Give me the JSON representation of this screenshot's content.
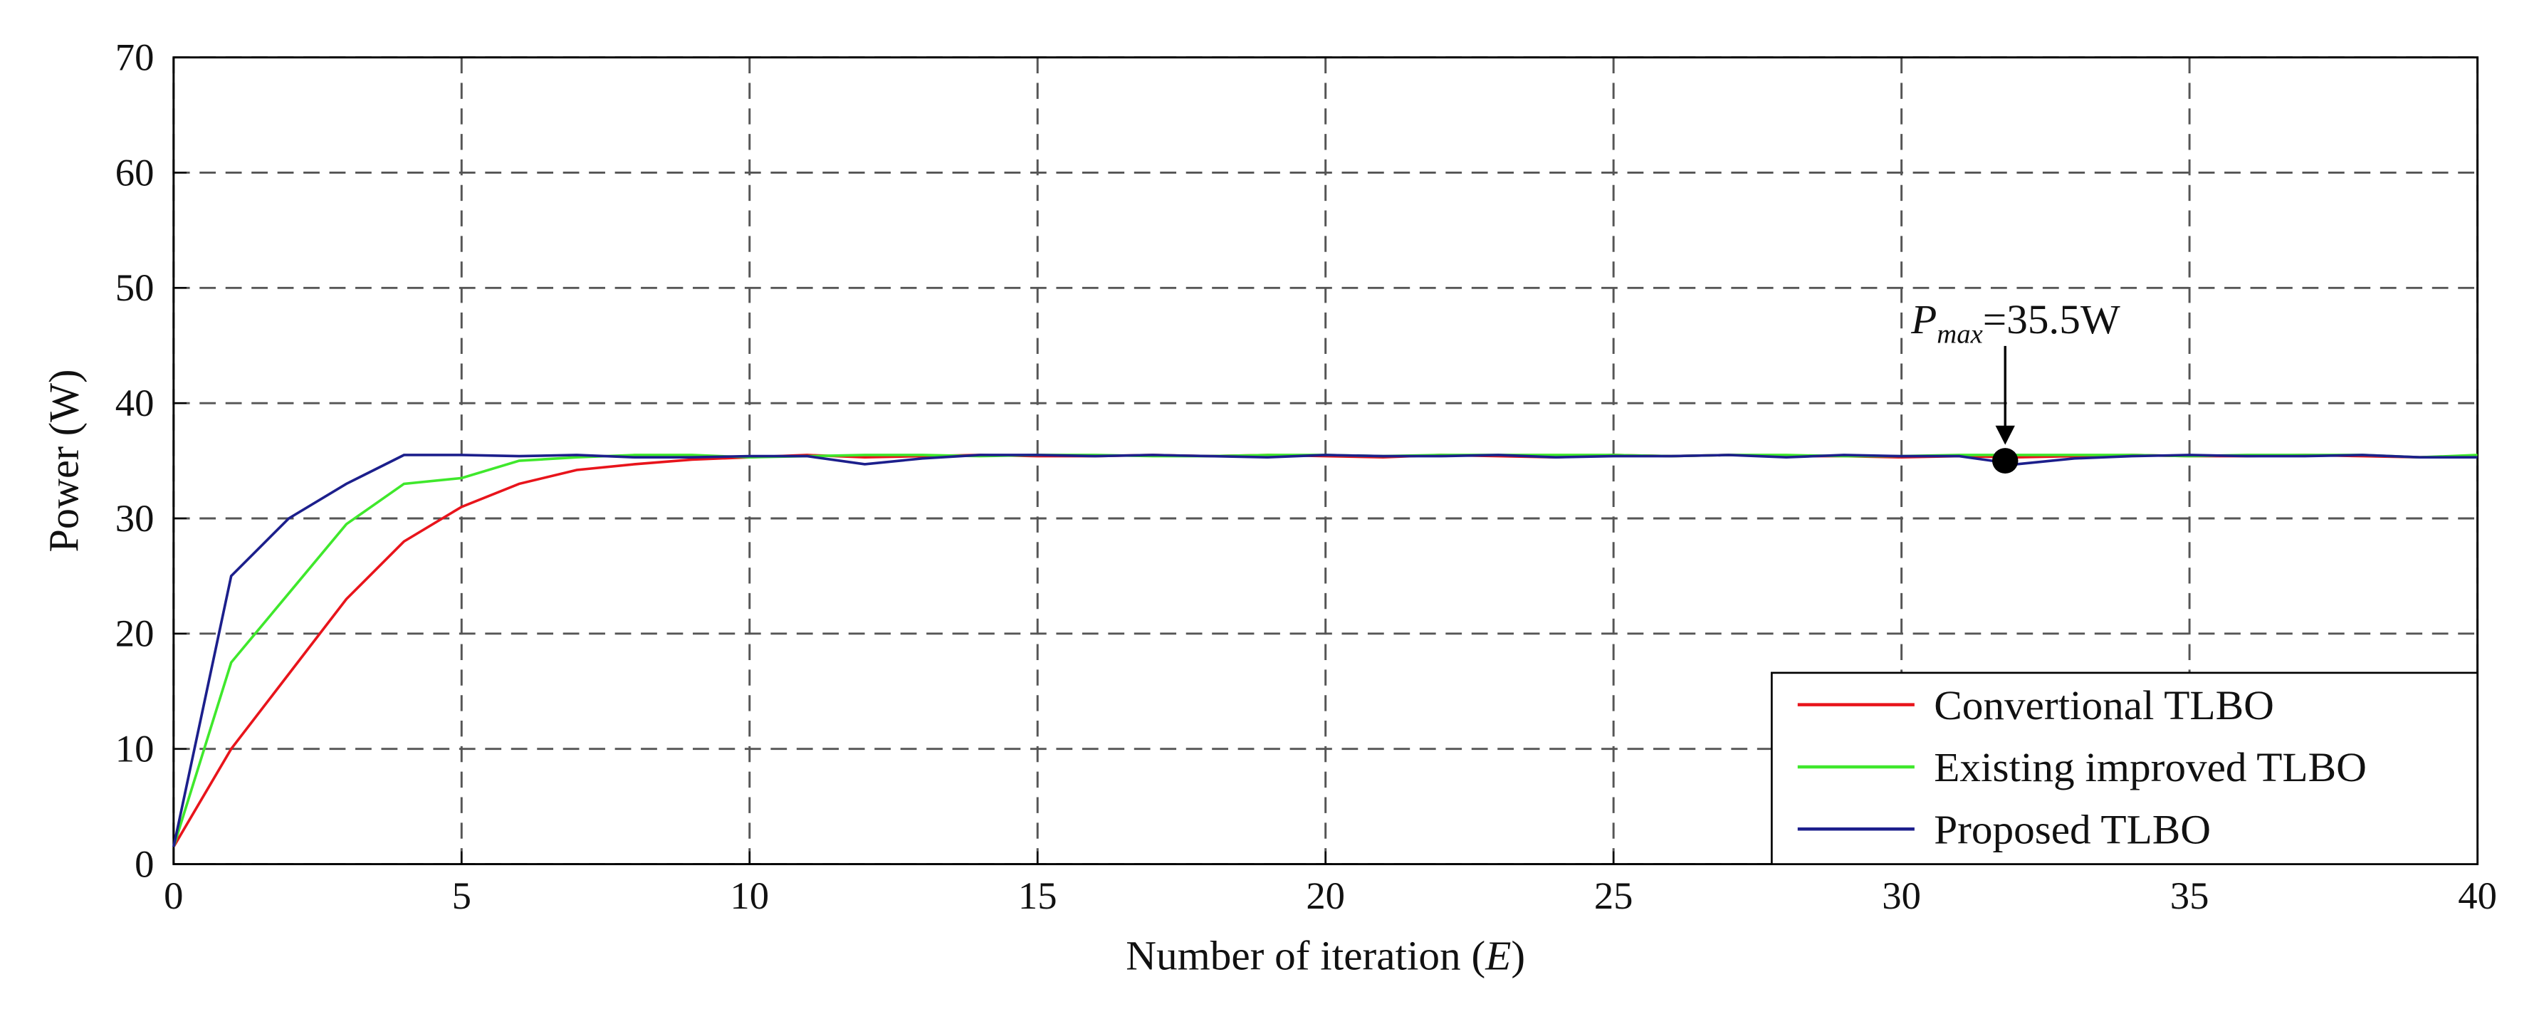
{
  "chart_data": {
    "type": "line",
    "ylabel": "Power (W)",
    "xlabel_parts": [
      "Number of iteration (",
      "E",
      ")"
    ],
    "x": [
      0,
      1,
      2,
      3,
      4,
      5,
      6,
      7,
      8,
      9,
      10,
      11,
      12,
      13,
      14,
      15,
      16,
      17,
      18,
      19,
      20,
      21,
      22,
      23,
      24,
      25,
      26,
      27,
      28,
      29,
      30,
      31,
      32,
      33,
      34,
      35,
      36,
      37,
      38,
      39,
      40
    ],
    "series": [
      {
        "name": "Convertional TLBO",
        "color": "#e8141b",
        "values": [
          1.5,
          10,
          16.5,
          23,
          28,
          31,
          33,
          34.2,
          34.7,
          35.1,
          35.3,
          35.5,
          35.3,
          35.4,
          35.5,
          35.4,
          35.4,
          35.5,
          35.4,
          35.5,
          35.4,
          35.3,
          35.5,
          35.4,
          35.3,
          35.5,
          35.4,
          35.5,
          35.4,
          35.4,
          35.3,
          35.4,
          35.3,
          35.4,
          35.5,
          35.4,
          35.4,
          35.5,
          35.4,
          35.3,
          35.4
        ]
      },
      {
        "name": "Existing improved TLBO",
        "color": "#3fe82c",
        "values": [
          1.5,
          17.5,
          23.5,
          29.5,
          33,
          33.5,
          35,
          35.3,
          35.5,
          35.5,
          35.3,
          35.4,
          35.5,
          35.5,
          35.4,
          35.5,
          35.5,
          35.4,
          35.4,
          35.5,
          35.5,
          35.4,
          35.5,
          35.5,
          35.5,
          35.5,
          35.4,
          35.5,
          35.5,
          35.4,
          35.4,
          35.5,
          35.5,
          35.5,
          35.5,
          35.4,
          35.5,
          35.5,
          35.5,
          35.3,
          35.5
        ]
      },
      {
        "name": "Proposed TLBO",
        "color": "#1c1f8c",
        "values": [
          1.5,
          25,
          30,
          33,
          35.5,
          35.5,
          35.4,
          35.5,
          35.3,
          35.3,
          35.4,
          35.4,
          34.7,
          35.2,
          35.5,
          35.5,
          35.4,
          35.5,
          35.4,
          35.3,
          35.5,
          35.4,
          35.4,
          35.5,
          35.3,
          35.4,
          35.4,
          35.5,
          35.3,
          35.5,
          35.4,
          35.4,
          34.7,
          35.2,
          35.4,
          35.5,
          35.4,
          35.4,
          35.5,
          35.3,
          35.3
        ]
      }
    ],
    "annotation": {
      "base": "P",
      "subscript": "max",
      "text": "=35.5W",
      "x": 31.8,
      "y": 35
    },
    "xlim": [
      0,
      40
    ],
    "xticks": [
      0,
      5,
      10,
      15,
      20,
      25,
      30,
      35,
      40
    ],
    "ylim": [
      0,
      70
    ],
    "yticks": [
      0,
      10,
      20,
      30,
      40,
      50,
      60,
      70
    ],
    "grid": true,
    "legend": "lower right"
  }
}
